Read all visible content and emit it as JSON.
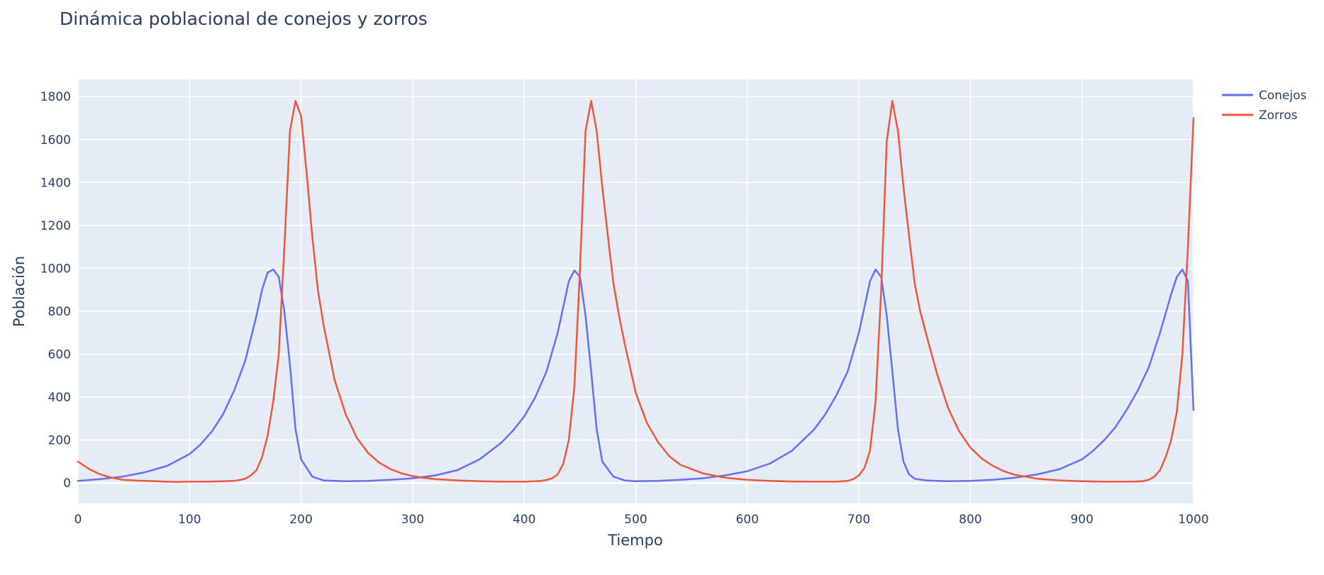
{
  "chart_data": {
    "type": "line",
    "title": "Dinámica poblacional de conejos y zorros",
    "xlabel": "Tiempo",
    "ylabel": "Población",
    "xlim": [
      0,
      1000
    ],
    "ylim": [
      -95,
      1880
    ],
    "xticks": [
      0,
      100,
      200,
      300,
      400,
      500,
      600,
      700,
      800,
      900,
      1000
    ],
    "yticks": [
      0,
      200,
      400,
      600,
      800,
      1000,
      1200,
      1400,
      1600,
      1800
    ],
    "grid": true,
    "legend_position": "top-right",
    "series": [
      {
        "name": "Conejos",
        "color": "#636efa",
        "x": [
          0,
          20,
          40,
          60,
          80,
          100,
          110,
          120,
          130,
          140,
          150,
          160,
          165,
          170,
          175,
          180,
          185,
          190,
          195,
          200,
          210,
          220,
          240,
          260,
          280,
          300,
          320,
          340,
          360,
          380,
          390,
          400,
          410,
          420,
          430,
          435,
          440,
          445,
          450,
          455,
          460,
          465,
          470,
          480,
          490,
          500,
          520,
          540,
          560,
          580,
          600,
          620,
          640,
          660,
          670,
          680,
          690,
          700,
          705,
          710,
          715,
          720,
          725,
          730,
          735,
          740,
          745,
          750,
          760,
          780,
          800,
          820,
          840,
          860,
          880,
          900,
          910,
          920,
          930,
          940,
          950,
          960,
          970,
          980,
          985,
          990,
          995,
          1000
        ],
        "values": [
          10,
          18,
          30,
          50,
          80,
          135,
          180,
          240,
          320,
          430,
          570,
          780,
          900,
          980,
          995,
          960,
          800,
          550,
          250,
          110,
          30,
          12,
          8,
          10,
          15,
          22,
          35,
          60,
          110,
          190,
          245,
          310,
          400,
          520,
          700,
          820,
          940,
          990,
          960,
          780,
          520,
          250,
          100,
          30,
          12,
          8,
          10,
          15,
          22,
          35,
          55,
          90,
          150,
          250,
          320,
          410,
          520,
          700,
          820,
          940,
          995,
          960,
          780,
          520,
          250,
          100,
          40,
          20,
          12,
          8,
          10,
          15,
          25,
          40,
          65,
          110,
          150,
          200,
          260,
          340,
          430,
          540,
          700,
          880,
          960,
          995,
          940,
          340
        ]
      },
      {
        "name": "Zorros",
        "color": "#ef553b",
        "x": [
          0,
          10,
          20,
          30,
          40,
          50,
          60,
          70,
          80,
          90,
          100,
          110,
          120,
          130,
          140,
          145,
          150,
          155,
          160,
          165,
          170,
          175,
          180,
          185,
          190,
          195,
          200,
          205,
          210,
          215,
          220,
          230,
          240,
          250,
          260,
          270,
          280,
          290,
          300,
          310,
          320,
          340,
          360,
          380,
          400,
          410,
          415,
          420,
          425,
          430,
          435,
          440,
          445,
          450,
          455,
          460,
          465,
          470,
          475,
          480,
          485,
          490,
          500,
          510,
          520,
          530,
          540,
          560,
          580,
          600,
          620,
          640,
          660,
          680,
          690,
          695,
          700,
          705,
          710,
          715,
          720,
          725,
          730,
          735,
          740,
          745,
          750,
          755,
          760,
          770,
          780,
          790,
          800,
          810,
          820,
          830,
          840,
          860,
          880,
          900,
          920,
          940,
          950,
          955,
          960,
          965,
          970,
          975,
          980,
          985,
          990,
          995,
          1000
        ],
        "values": [
          100,
          65,
          40,
          25,
          15,
          12,
          10,
          8,
          6,
          5,
          6,
          6,
          7,
          8,
          10,
          14,
          20,
          35,
          60,
          120,
          220,
          380,
          600,
          1100,
          1640,
          1780,
          1710,
          1440,
          1150,
          900,
          740,
          480,
          320,
          210,
          140,
          95,
          65,
          45,
          32,
          24,
          18,
          12,
          8,
          6,
          6,
          8,
          10,
          14,
          22,
          40,
          90,
          200,
          450,
          1000,
          1640,
          1780,
          1640,
          1380,
          1150,
          930,
          780,
          650,
          420,
          280,
          190,
          125,
          85,
          45,
          25,
          15,
          10,
          7,
          6,
          6,
          10,
          18,
          35,
          70,
          150,
          380,
          900,
          1590,
          1780,
          1640,
          1380,
          1150,
          930,
          800,
          700,
          510,
          350,
          240,
          165,
          115,
          80,
          55,
          38,
          20,
          12,
          8,
          6,
          6,
          7,
          9,
          15,
          30,
          60,
          120,
          200,
          330,
          600,
          1100,
          1700
        ]
      }
    ]
  }
}
